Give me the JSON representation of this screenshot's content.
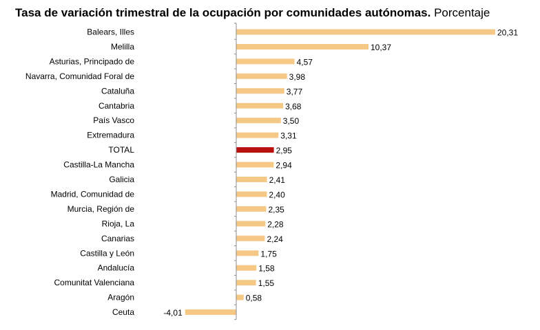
{
  "chart_data": {
    "type": "bar",
    "orientation": "horizontal",
    "title": "Tasa de variación trimestral de la ocupación por comunidades autónomas.",
    "subtitle": "Porcentaje",
    "categories": [
      "Balears, Illes",
      "Melilla",
      "Asturias, Principado de",
      "Navarra, Comunidad Foral de",
      "Cataluña",
      "Cantabria",
      "País Vasco",
      "Extremadura",
      "TOTAL",
      "Castilla-La Mancha",
      "Galicia",
      "Madrid, Comunidad de",
      "Murcia, Región de",
      "Rioja, La",
      "Canarias",
      "Castilla y León",
      "Andalucía",
      "Comunitat Valenciana",
      "Aragón",
      "Ceuta"
    ],
    "values": [
      20.31,
      10.37,
      4.57,
      3.98,
      3.77,
      3.68,
      3.5,
      3.31,
      2.95,
      2.94,
      2.41,
      2.4,
      2.35,
      2.28,
      2.24,
      1.75,
      1.58,
      1.55,
      0.58,
      -4.01
    ],
    "value_labels": [
      "20,31",
      "10,37",
      "4,57",
      "3,98",
      "3,77",
      "3,68",
      "3,50",
      "3,31",
      "2,95",
      "2,94",
      "2,41",
      "2,40",
      "2,35",
      "2,28",
      "2,24",
      "1,75",
      "1,58",
      "1,55",
      "0,58",
      "-4,01"
    ],
    "highlight_category": "TOTAL",
    "colors": {
      "bar": "#f5c885",
      "highlight": "#b80f0f",
      "axis": "#8c8c8c"
    },
    "xlim": [
      -4.01,
      20.31
    ],
    "grid": false,
    "legend": "none"
  }
}
